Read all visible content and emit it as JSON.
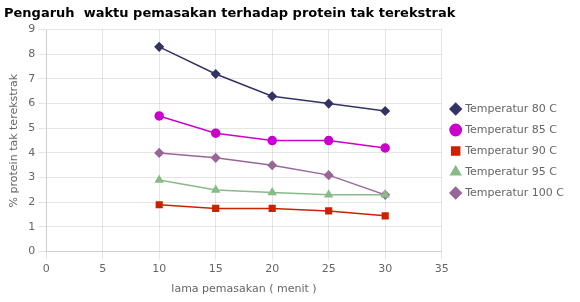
{
  "chart_data": {
    "type": "line",
    "title": "Pengaruh  waktu pemasakan terhadap protein tak terekstrak",
    "xlabel": "lama pemasakan ( menit )",
    "ylabel": "% protein tak terekstrak",
    "x": [
      10,
      15,
      20,
      25,
      30
    ],
    "series": [
      {
        "name": "Temperatur 80 C",
        "color": "#333366",
        "marker": "diamond",
        "values": [
          8.3,
          7.2,
          6.3,
          6.0,
          5.7
        ]
      },
      {
        "name": "Temperatur 85 C",
        "color": "#cc00cc",
        "marker": "circle",
        "values": [
          5.5,
          4.8,
          4.5,
          4.5,
          4.2
        ]
      },
      {
        "name": "Temperatur 90 C",
        "color": "#cc2200",
        "marker": "square",
        "values": [
          1.9,
          1.75,
          1.75,
          1.65,
          1.45
        ]
      },
      {
        "name": "Temperatur 95 C",
        "color": "#88bb88",
        "marker": "triangle",
        "values": [
          2.9,
          2.5,
          2.4,
          2.3,
          2.3
        ]
      },
      {
        "name": "Temperatur 100 C",
        "color": "#996699",
        "marker": "diamond",
        "values": [
          4.0,
          3.8,
          3.5,
          3.1,
          2.3
        ]
      }
    ],
    "xlim": [
      0,
      35
    ],
    "ylim": [
      0,
      9
    ],
    "xticks": [
      0,
      5,
      10,
      15,
      20,
      25,
      30,
      35
    ],
    "yticks": [
      0,
      1,
      2,
      3,
      4,
      5,
      6,
      7,
      8,
      9
    ],
    "grid": true,
    "legend": "right"
  }
}
